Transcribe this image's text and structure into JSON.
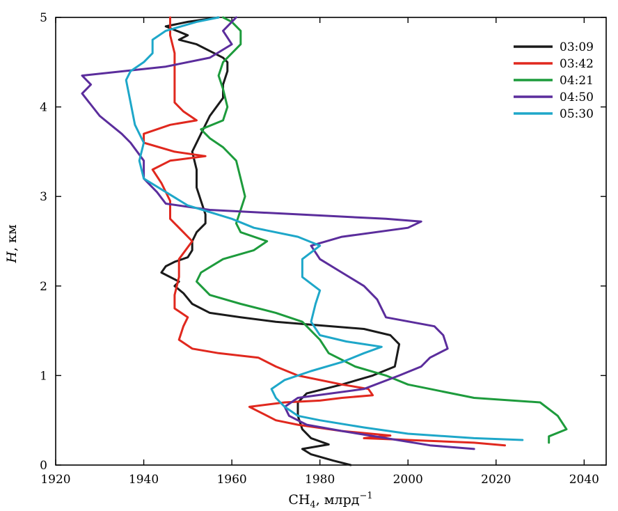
{
  "chart_data": {
    "type": "line",
    "xlabel": {
      "main": "CH",
      "sub": "4",
      "rest": ", млрд",
      "sup": "−1"
    },
    "ylabel": {
      "italic": "H",
      "rest": ", км"
    },
    "xlim": [
      1920,
      2045
    ],
    "ylim": [
      0,
      5
    ],
    "xticks": [
      1920,
      1940,
      1960,
      1980,
      2000,
      2020,
      2040
    ],
    "yticks": [
      0,
      1,
      2,
      3,
      4,
      5
    ],
    "grid": false,
    "legend_position": "top-right",
    "series": [
      {
        "name": "03:09",
        "color": "#1a1a1a",
        "points": [
          [
            1987,
            0.0
          ],
          [
            1983,
            0.05
          ],
          [
            1978,
            0.12
          ],
          [
            1976,
            0.18
          ],
          [
            1982,
            0.23
          ],
          [
            1978,
            0.3
          ],
          [
            1976,
            0.4
          ],
          [
            1975,
            0.55
          ],
          [
            1975,
            0.7
          ],
          [
            1977,
            0.8
          ],
          [
            1985,
            0.9
          ],
          [
            1992,
            1.0
          ],
          [
            1997,
            1.1
          ],
          [
            1998,
            1.35
          ],
          [
            1996,
            1.45
          ],
          [
            1990,
            1.52
          ],
          [
            1980,
            1.56
          ],
          [
            1970,
            1.6
          ],
          [
            1962,
            1.65
          ],
          [
            1955,
            1.7
          ],
          [
            1951,
            1.8
          ],
          [
            1949,
            1.92
          ],
          [
            1947,
            2.0
          ],
          [
            1948,
            2.05
          ],
          [
            1944,
            2.15
          ],
          [
            1945,
            2.22
          ],
          [
            1947,
            2.27
          ],
          [
            1950,
            2.32
          ],
          [
            1951,
            2.4
          ],
          [
            1951,
            2.5
          ],
          [
            1952,
            2.6
          ],
          [
            1954,
            2.7
          ],
          [
            1954,
            2.8
          ],
          [
            1953,
            2.95
          ],
          [
            1952,
            3.1
          ],
          [
            1952,
            3.3
          ],
          [
            1951,
            3.5
          ],
          [
            1953,
            3.7
          ],
          [
            1955,
            3.9
          ],
          [
            1958,
            4.1
          ],
          [
            1958,
            4.25
          ],
          [
            1959,
            4.4
          ],
          [
            1959,
            4.5
          ],
          [
            1958,
            4.55
          ],
          [
            1956,
            4.6
          ],
          [
            1952,
            4.7
          ],
          [
            1948,
            4.75
          ],
          [
            1950,
            4.8
          ],
          [
            1945,
            4.9
          ],
          [
            1950,
            4.95
          ],
          [
            1957,
            5.0
          ]
        ]
      },
      {
        "name": "03:42",
        "color": "#e0281e",
        "points": [
          [
            2022,
            0.22
          ],
          [
            2015,
            0.25
          ],
          [
            2000,
            0.28
          ],
          [
            1990,
            0.3
          ],
          [
            1996,
            0.33
          ],
          [
            1985,
            0.38
          ],
          [
            1975,
            0.45
          ],
          [
            1970,
            0.5
          ],
          [
            1966,
            0.6
          ],
          [
            1964,
            0.65
          ],
          [
            1972,
            0.7
          ],
          [
            1980,
            0.72
          ],
          [
            1985,
            0.75
          ],
          [
            1992,
            0.78
          ],
          [
            1991,
            0.85
          ],
          [
            1985,
            0.9
          ],
          [
            1975,
            1.0
          ],
          [
            1970,
            1.1
          ],
          [
            1966,
            1.2
          ],
          [
            1957,
            1.25
          ],
          [
            1951,
            1.3
          ],
          [
            1948,
            1.4
          ],
          [
            1949,
            1.55
          ],
          [
            1950,
            1.65
          ],
          [
            1947,
            1.75
          ],
          [
            1947,
            1.9
          ],
          [
            1948,
            2.1
          ],
          [
            1948,
            2.3
          ],
          [
            1951,
            2.5
          ],
          [
            1949,
            2.6
          ],
          [
            1946,
            2.75
          ],
          [
            1946,
            2.95
          ],
          [
            1944,
            3.15
          ],
          [
            1942,
            3.3
          ],
          [
            1946,
            3.4
          ],
          [
            1954,
            3.45
          ],
          [
            1947,
            3.5
          ],
          [
            1940,
            3.6
          ],
          [
            1940,
            3.7
          ],
          [
            1946,
            3.8
          ],
          [
            1952,
            3.85
          ],
          [
            1949,
            3.95
          ],
          [
            1947,
            4.05
          ],
          [
            1947,
            4.3
          ],
          [
            1947,
            4.6
          ],
          [
            1946,
            4.8
          ],
          [
            1946,
            5.0
          ]
        ]
      },
      {
        "name": "04:21",
        "color": "#1d9b3c",
        "points": [
          [
            2032,
            0.25
          ],
          [
            2032,
            0.32
          ],
          [
            2036,
            0.4
          ],
          [
            2034,
            0.55
          ],
          [
            2030,
            0.7
          ],
          [
            2015,
            0.75
          ],
          [
            2005,
            0.85
          ],
          [
            2000,
            0.9
          ],
          [
            1995,
            1.0
          ],
          [
            1988,
            1.1
          ],
          [
            1982,
            1.25
          ],
          [
            1980,
            1.4
          ],
          [
            1976,
            1.6
          ],
          [
            1970,
            1.7
          ],
          [
            1962,
            1.8
          ],
          [
            1955,
            1.9
          ],
          [
            1952,
            2.05
          ],
          [
            1953,
            2.15
          ],
          [
            1958,
            2.3
          ],
          [
            1965,
            2.4
          ],
          [
            1968,
            2.5
          ],
          [
            1962,
            2.6
          ],
          [
            1961,
            2.7
          ],
          [
            1962,
            2.85
          ],
          [
            1963,
            3.0
          ],
          [
            1962,
            3.2
          ],
          [
            1961,
            3.4
          ],
          [
            1958,
            3.55
          ],
          [
            1955,
            3.65
          ],
          [
            1953,
            3.75
          ],
          [
            1958,
            3.85
          ],
          [
            1959,
            4.0
          ],
          [
            1958,
            4.2
          ],
          [
            1957,
            4.35
          ],
          [
            1958,
            4.5
          ],
          [
            1962,
            4.7
          ],
          [
            1962,
            4.85
          ],
          [
            1960,
            4.95
          ],
          [
            1958,
            5.0
          ]
        ]
      },
      {
        "name": "04:50",
        "color": "#5b2d9c",
        "points": [
          [
            2015,
            0.18
          ],
          [
            2005,
            0.22
          ],
          [
            1995,
            0.3
          ],
          [
            1985,
            0.38
          ],
          [
            1977,
            0.45
          ],
          [
            1973,
            0.55
          ],
          [
            1972,
            0.65
          ],
          [
            1975,
            0.75
          ],
          [
            1990,
            0.85
          ],
          [
            1998,
            1.0
          ],
          [
            2003,
            1.1
          ],
          [
            2005,
            1.2
          ],
          [
            2009,
            1.3
          ],
          [
            2008,
            1.45
          ],
          [
            2006,
            1.55
          ],
          [
            1995,
            1.65
          ],
          [
            1993,
            1.85
          ],
          [
            1990,
            2.0
          ],
          [
            1985,
            2.15
          ],
          [
            1980,
            2.3
          ],
          [
            1978,
            2.45
          ],
          [
            1985,
            2.55
          ],
          [
            2000,
            2.65
          ],
          [
            2003,
            2.72
          ],
          [
            1995,
            2.75
          ],
          [
            1975,
            2.8
          ],
          [
            1955,
            2.85
          ],
          [
            1945,
            2.92
          ],
          [
            1943,
            3.05
          ],
          [
            1940,
            3.2
          ],
          [
            1940,
            3.4
          ],
          [
            1937,
            3.6
          ],
          [
            1935,
            3.7
          ],
          [
            1930,
            3.9
          ],
          [
            1926,
            4.15
          ],
          [
            1928,
            4.25
          ],
          [
            1926,
            4.35
          ],
          [
            1945,
            4.45
          ],
          [
            1955,
            4.55
          ],
          [
            1960,
            4.7
          ],
          [
            1958,
            4.85
          ],
          [
            1961,
            5.0
          ]
        ]
      },
      {
        "name": "05:30",
        "color": "#1ea7c9",
        "points": [
          [
            2026,
            0.28
          ],
          [
            2015,
            0.3
          ],
          [
            2000,
            0.35
          ],
          [
            1990,
            0.42
          ],
          [
            1980,
            0.5
          ],
          [
            1975,
            0.55
          ],
          [
            1972,
            0.65
          ],
          [
            1970,
            0.75
          ],
          [
            1969,
            0.85
          ],
          [
            1972,
            0.95
          ],
          [
            1978,
            1.05
          ],
          [
            1985,
            1.15
          ],
          [
            1990,
            1.25
          ],
          [
            1994,
            1.32
          ],
          [
            1986,
            1.38
          ],
          [
            1980,
            1.45
          ],
          [
            1978,
            1.6
          ],
          [
            1979,
            1.8
          ],
          [
            1980,
            1.95
          ],
          [
            1976,
            2.1
          ],
          [
            1976,
            2.3
          ],
          [
            1980,
            2.45
          ],
          [
            1975,
            2.55
          ],
          [
            1965,
            2.65
          ],
          [
            1960,
            2.75
          ],
          [
            1950,
            2.9
          ],
          [
            1945,
            3.05
          ],
          [
            1940,
            3.2
          ],
          [
            1939,
            3.4
          ],
          [
            1940,
            3.6
          ],
          [
            1938,
            3.8
          ],
          [
            1937,
            4.05
          ],
          [
            1936,
            4.3
          ],
          [
            1937,
            4.4
          ],
          [
            1940,
            4.5
          ],
          [
            1942,
            4.6
          ],
          [
            1942,
            4.75
          ],
          [
            1945,
            4.85
          ],
          [
            1952,
            4.95
          ],
          [
            1957,
            5.0
          ]
        ]
      }
    ]
  }
}
